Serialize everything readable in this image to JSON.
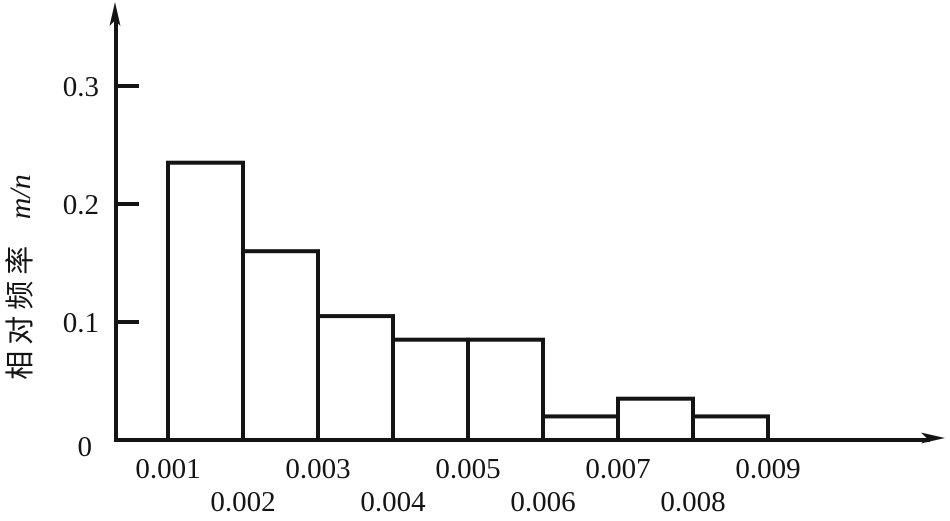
{
  "figure": {
    "background": "#ffffff",
    "ink_color": "#141414",
    "bar_fill": "#ffffff"
  },
  "chart_data": {
    "type": "bar",
    "subtype": "histogram",
    "title": "",
    "xlabel": "",
    "ylabel": "相对频率 m/n",
    "ylabel_cjk": "相对频率",
    "ylabel_math": "m/n",
    "bin_edges": [
      0.001,
      0.002,
      0.003,
      0.004,
      0.005,
      0.006,
      0.007,
      0.008,
      0.009
    ],
    "values": [
      0.235,
      0.16,
      0.105,
      0.085,
      0.085,
      0.02,
      0.035,
      0.02
    ],
    "yticks": [
      0.1,
      0.2,
      0.3
    ],
    "ytick_labels": [
      "0.1",
      "0.2",
      "0.3"
    ],
    "origin_label": "0",
    "xtick_labels": [
      "0.001",
      "0.002",
      "0.003",
      "0.004",
      "0.005",
      "0.006",
      "0.007",
      "0.008",
      "0.009"
    ],
    "xlim": [
      0.0003,
      0.0106
    ],
    "ylim": [
      0,
      0.37
    ],
    "grid": false,
    "legend": null,
    "bar_outline_only": true
  }
}
